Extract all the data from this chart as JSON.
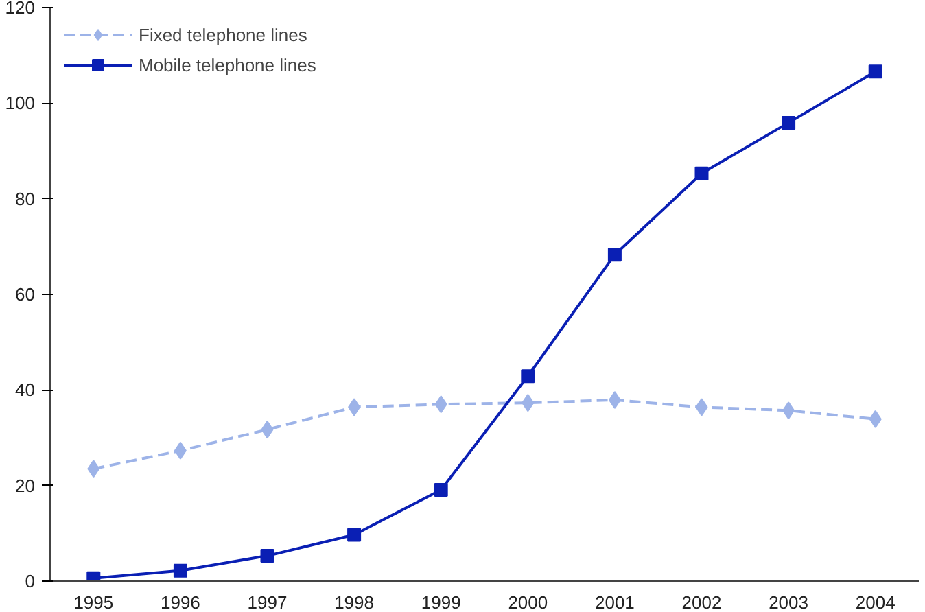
{
  "chart_data": {
    "type": "line",
    "categories": [
      "1995",
      "1996",
      "1997",
      "1998",
      "1999",
      "2000",
      "2001",
      "2002",
      "2003",
      "2004"
    ],
    "series": [
      {
        "name": "Fixed telephone lines",
        "color": "#9db3e8",
        "line_style": "dashed",
        "marker": "diamond",
        "values": [
          23.5,
          27.3,
          31.7,
          36.4,
          37,
          37.3,
          37.9,
          36.4,
          35.7,
          33.9
        ]
      },
      {
        "name": "Mobile telephone lines",
        "color": "#0a1fb4",
        "line_style": "solid",
        "marker": "square",
        "values": [
          0.6,
          2.2,
          5.3,
          9.7,
          19.1,
          42.9,
          68.3,
          85.3,
          95.9,
          106.6
        ]
      }
    ],
    "ylim": [
      0,
      120
    ],
    "yticks": [
      0,
      20,
      40,
      60,
      80,
      100,
      120
    ],
    "grid": false,
    "legend": "top left"
  }
}
